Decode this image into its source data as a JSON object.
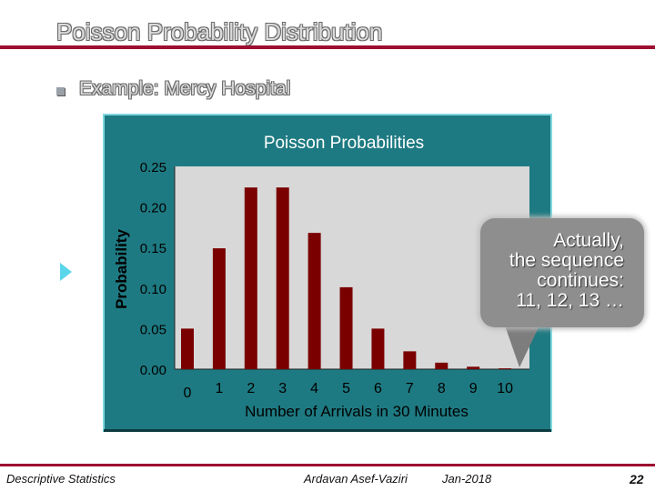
{
  "slide": {
    "title": "Poisson Probability Distribution",
    "bullet": "Example:  Mercy Hospital"
  },
  "chart_data": {
    "type": "bar",
    "title": "Poisson Probabilities",
    "xlabel": "Number of Arrivals in 30 Minutes",
    "ylabel": "Probability",
    "categories": [
      "0",
      "1",
      "2",
      "3",
      "4",
      "5",
      "6",
      "7",
      "8",
      "9",
      "10"
    ],
    "values": [
      0.05,
      0.149,
      0.224,
      0.224,
      0.168,
      0.101,
      0.05,
      0.022,
      0.008,
      0.003,
      0.001
    ],
    "yticks": [
      "0.00",
      "0.05",
      "0.10",
      "0.15",
      "0.20",
      "0.25"
    ],
    "ylim": [
      0,
      0.25
    ],
    "grid": false,
    "colors": {
      "bar": "#7a0000",
      "plot_bg": "#d8d8d8",
      "frame_bg": "#1e7a82",
      "frame_border": "#7fd8e0"
    }
  },
  "callout": {
    "lines": [
      "Actually,",
      "the sequence",
      "continues:",
      "11, 12, 13  …"
    ]
  },
  "footer": {
    "course": "Descriptive Statistics",
    "author": "Ardavan Asef-Vaziri",
    "date": "Jan-2018",
    "page": "22"
  }
}
